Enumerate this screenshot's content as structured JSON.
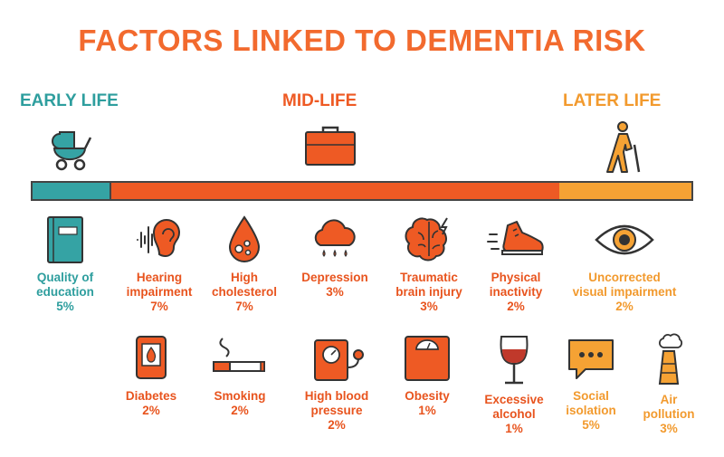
{
  "title": "FACTORS LINKED TO DEMENTIA RISK",
  "stages": {
    "early": "EARLY LIFE",
    "mid": "MID-LIFE",
    "later": "LATER LIFE"
  },
  "stage_icons": [
    "stroller-icon",
    "briefcase-icon",
    "walking-elder-icon"
  ],
  "colors": {
    "title": "#f26a2e",
    "early": "#35a3a4",
    "mid": "#ee5a24",
    "later": "#f5a234"
  },
  "factors": [
    {
      "name": "Quality of\neducation",
      "line1": "Quality of",
      "line2": "education",
      "percent": "5%",
      "stage": "early",
      "icon": "book-icon"
    },
    {
      "line1": "Hearing",
      "line2": "impairment",
      "percent": "7%",
      "stage": "mid",
      "icon": "ear-icon"
    },
    {
      "line1": "High",
      "line2": "cholesterol",
      "percent": "7%",
      "stage": "mid",
      "icon": "blood-drop-icon"
    },
    {
      "line1": "Depression",
      "line2": "",
      "percent": "3%",
      "stage": "mid",
      "icon": "rain-cloud-icon"
    },
    {
      "line1": "Traumatic",
      "line2": "brain injury",
      "percent": "3%",
      "stage": "mid",
      "icon": "brain-icon"
    },
    {
      "line1": "Physical",
      "line2": "inactivity",
      "percent": "2%",
      "stage": "mid",
      "icon": "sneaker-icon"
    },
    {
      "line1": "Uncorrected",
      "line2": "visual impairment",
      "percent": "2%",
      "stage": "later",
      "icon": "eye-icon"
    },
    {
      "line1": "Diabetes",
      "line2": "",
      "percent": "2%",
      "stage": "mid",
      "icon": "blood-bag-icon"
    },
    {
      "line1": "Smoking",
      "line2": "",
      "percent": "2%",
      "stage": "mid",
      "icon": "cigarette-icon"
    },
    {
      "line1": "High blood",
      "line2": "pressure",
      "percent": "2%",
      "stage": "mid",
      "icon": "blood-pressure-monitor-icon"
    },
    {
      "line1": "Obesity",
      "line2": "",
      "percent": "1%",
      "stage": "mid",
      "icon": "scale-icon"
    },
    {
      "line1": "Excessive",
      "line2": "alcohol",
      "percent": "1%",
      "stage": "mid",
      "icon": "wine-glass-icon"
    },
    {
      "line1": "Social",
      "line2": "isolation",
      "percent": "5%",
      "stage": "later",
      "icon": "speech-bubble-icon"
    },
    {
      "line1": "Air",
      "line2": "pollution",
      "percent": "3%",
      "stage": "later",
      "icon": "smokestack-icon"
    }
  ]
}
